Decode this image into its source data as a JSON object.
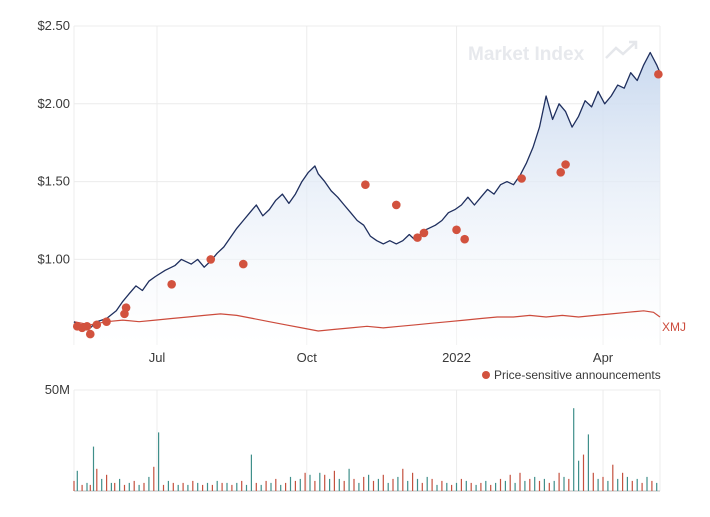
{
  "watermark": {
    "text": "Market Index"
  },
  "colors": {
    "price_line": "#1f2f5e",
    "area_top": "#c9d9ef",
    "area_bottom": "#ffffff",
    "benchmark_line": "#cc4b3c",
    "announcement_dot": "#d2523e",
    "volume_up": "#3f8f8a",
    "volume_down": "#c4513f",
    "grid": "#ececec"
  },
  "legend": {
    "label": "Price-sensitive announcements"
  },
  "chart_data": [
    {
      "type": "line",
      "y_ticks": [
        "$2.50",
        "$2.00",
        "$1.50",
        "$1.00"
      ],
      "y_tick_values": [
        2.5,
        2.0,
        1.5,
        1.0
      ],
      "ylim": [
        0.45,
        2.5
      ],
      "x_ticks": [
        "Jul",
        "Oct",
        "2022",
        "Apr"
      ],
      "x_tick_days": [
        51,
        143,
        235,
        325
      ],
      "x_range_days": [
        0,
        360
      ],
      "grid": true,
      "series": [
        {
          "name": "",
          "role": "price",
          "x": [
            0,
            6,
            10,
            14,
            20,
            26,
            30,
            34,
            38,
            42,
            46,
            50,
            56,
            62,
            66,
            72,
            76,
            80,
            84,
            88,
            92,
            96,
            100,
            104,
            108,
            112,
            116,
            120,
            124,
            128,
            132,
            136,
            140,
            144,
            148,
            150,
            154,
            158,
            162,
            166,
            170,
            174,
            178,
            182,
            186,
            190,
            194,
            198,
            202,
            206,
            210,
            214,
            218,
            222,
            226,
            230,
            234,
            238,
            242,
            246,
            250,
            254,
            258,
            262,
            266,
            270,
            274,
            278,
            282,
            286,
            290,
            294,
            298,
            302,
            306,
            310,
            314,
            318,
            322,
            326,
            330,
            334,
            338,
            342,
            346,
            350,
            354,
            358,
            360
          ],
          "values": [
            0.6,
            0.55,
            0.56,
            0.6,
            0.62,
            0.67,
            0.73,
            0.78,
            0.83,
            0.8,
            0.86,
            0.89,
            0.93,
            0.96,
            1.0,
            0.97,
            1.0,
            0.95,
            0.99,
            1.04,
            1.08,
            1.14,
            1.2,
            1.25,
            1.3,
            1.35,
            1.28,
            1.32,
            1.38,
            1.42,
            1.36,
            1.42,
            1.5,
            1.56,
            1.6,
            1.55,
            1.5,
            1.44,
            1.4,
            1.35,
            1.3,
            1.25,
            1.22,
            1.15,
            1.12,
            1.1,
            1.12,
            1.1,
            1.12,
            1.16,
            1.12,
            1.18,
            1.2,
            1.22,
            1.25,
            1.3,
            1.32,
            1.35,
            1.4,
            1.35,
            1.4,
            1.45,
            1.42,
            1.48,
            1.5,
            1.48,
            1.54,
            1.62,
            1.72,
            1.85,
            2.05,
            1.9,
            2.0,
            1.95,
            1.85,
            1.92,
            2.02,
            1.98,
            2.08,
            2.0,
            2.05,
            2.12,
            2.1,
            2.2,
            2.15,
            2.25,
            2.33,
            2.25,
            2.2
          ]
        },
        {
          "name": "XMJ",
          "role": "benchmark",
          "x": [
            0,
            10,
            20,
            30,
            40,
            50,
            60,
            70,
            80,
            90,
            100,
            110,
            120,
            130,
            140,
            150,
            160,
            170,
            180,
            190,
            200,
            210,
            220,
            230,
            240,
            250,
            260,
            270,
            280,
            290,
            300,
            310,
            320,
            330,
            340,
            350,
            356,
            360
          ],
          "values": [
            0.6,
            0.58,
            0.6,
            0.61,
            0.6,
            0.61,
            0.62,
            0.63,
            0.64,
            0.65,
            0.64,
            0.62,
            0.6,
            0.58,
            0.56,
            0.54,
            0.55,
            0.56,
            0.57,
            0.56,
            0.57,
            0.58,
            0.59,
            0.6,
            0.61,
            0.62,
            0.63,
            0.63,
            0.64,
            0.63,
            0.64,
            0.63,
            0.64,
            0.65,
            0.66,
            0.67,
            0.66,
            0.63
          ]
        }
      ],
      "announcements": [
        {
          "x": 2,
          "value": 0.57
        },
        {
          "x": 5,
          "value": 0.56
        },
        {
          "x": 8,
          "value": 0.57
        },
        {
          "x": 10,
          "value": 0.52
        },
        {
          "x": 14,
          "value": 0.58
        },
        {
          "x": 20,
          "value": 0.6
        },
        {
          "x": 31,
          "value": 0.65
        },
        {
          "x": 32,
          "value": 0.69
        },
        {
          "x": 60,
          "value": 0.84
        },
        {
          "x": 84,
          "value": 1.0
        },
        {
          "x": 104,
          "value": 0.97
        },
        {
          "x": 179,
          "value": 1.48
        },
        {
          "x": 198,
          "value": 1.35
        },
        {
          "x": 211,
          "value": 1.14
        },
        {
          "x": 215,
          "value": 1.17
        },
        {
          "x": 235,
          "value": 1.19
        },
        {
          "x": 240,
          "value": 1.13
        },
        {
          "x": 275,
          "value": 1.52
        },
        {
          "x": 299,
          "value": 1.56
        },
        {
          "x": 302,
          "value": 1.61
        },
        {
          "x": 359,
          "value": 2.19
        }
      ]
    },
    {
      "type": "bar",
      "y_ticks": [
        "50M"
      ],
      "y_tick_values": [
        50
      ],
      "ylim": [
        0,
        50
      ],
      "unit": "M",
      "x_range_days": [
        0,
        360
      ],
      "volumes": {
        "x": [
          0,
          2,
          5,
          8,
          10,
          12,
          14,
          17,
          20,
          23,
          25,
          28,
          31,
          34,
          37,
          40,
          43,
          46,
          49,
          52,
          55,
          58,
          61,
          64,
          67,
          70,
          73,
          76,
          79,
          82,
          85,
          88,
          91,
          94,
          97,
          100,
          103,
          106,
          109,
          112,
          115,
          118,
          121,
          124,
          127,
          130,
          133,
          136,
          139,
          142,
          145,
          148,
          151,
          154,
          157,
          160,
          163,
          166,
          169,
          172,
          175,
          178,
          181,
          184,
          187,
          190,
          193,
          196,
          199,
          202,
          205,
          208,
          211,
          214,
          217,
          220,
          223,
          226,
          229,
          232,
          235,
          238,
          241,
          244,
          247,
          250,
          253,
          256,
          259,
          262,
          265,
          268,
          271,
          274,
          277,
          280,
          283,
          286,
          289,
          292,
          295,
          298,
          301,
          304,
          307,
          310,
          313,
          316,
          319,
          322,
          325,
          328,
          331,
          334,
          337,
          340,
          343,
          346,
          349,
          352,
          355,
          358
        ],
        "values": [
          5,
          10,
          3,
          4,
          3,
          22,
          11,
          6,
          8,
          4,
          4,
          6,
          3,
          4,
          5,
          3,
          4,
          7,
          12,
          29,
          3,
          5,
          4,
          3,
          4,
          3,
          5,
          4,
          3,
          4,
          3,
          5,
          4,
          4,
          3,
          4,
          5,
          3,
          18,
          4,
          3,
          5,
          4,
          6,
          3,
          4,
          7,
          5,
          6,
          9,
          8,
          5,
          9,
          8,
          6,
          10,
          6,
          5,
          11,
          6,
          4,
          7,
          8,
          5,
          6,
          8,
          4,
          6,
          7,
          11,
          5,
          9,
          6,
          4,
          7,
          6,
          3,
          5,
          4,
          3,
          4,
          6,
          5,
          4,
          3,
          4,
          5,
          3,
          4,
          6,
          5,
          8,
          4,
          9,
          5,
          6,
          7,
          5,
          6,
          4,
          5,
          9,
          7,
          6,
          41,
          15,
          18,
          28,
          9,
          6,
          7,
          5,
          13,
          6,
          9,
          7,
          5,
          6,
          4,
          7,
          5,
          4
        ],
        "direction": [
          "d",
          "u",
          "d",
          "u",
          "d",
          "u",
          "d",
          "u",
          "d",
          "u",
          "d",
          "u",
          "d",
          "u",
          "d",
          "u",
          "d",
          "u",
          "d",
          "u",
          "d",
          "u",
          "d",
          "u",
          "d",
          "u",
          "d",
          "u",
          "d",
          "u",
          "d",
          "u",
          "d",
          "u",
          "d",
          "u",
          "d",
          "u",
          "u",
          "d",
          "u",
          "d",
          "u",
          "d",
          "u",
          "d",
          "u",
          "d",
          "u",
          "d",
          "u",
          "d",
          "u",
          "d",
          "u",
          "d",
          "u",
          "d",
          "u",
          "d",
          "u",
          "d",
          "u",
          "d",
          "u",
          "d",
          "u",
          "d",
          "u",
          "d",
          "u",
          "d",
          "u",
          "d",
          "u",
          "d",
          "u",
          "d",
          "u",
          "d",
          "u",
          "d",
          "u",
          "d",
          "u",
          "d",
          "u",
          "d",
          "u",
          "d",
          "u",
          "d",
          "u",
          "d",
          "u",
          "d",
          "u",
          "d",
          "u",
          "d",
          "u",
          "d",
          "u",
          "d",
          "u",
          "u",
          "d",
          "u",
          "d",
          "u",
          "d",
          "u",
          "d",
          "u",
          "d",
          "u",
          "d",
          "u",
          "d",
          "u",
          "d",
          "u"
        ]
      }
    }
  ]
}
